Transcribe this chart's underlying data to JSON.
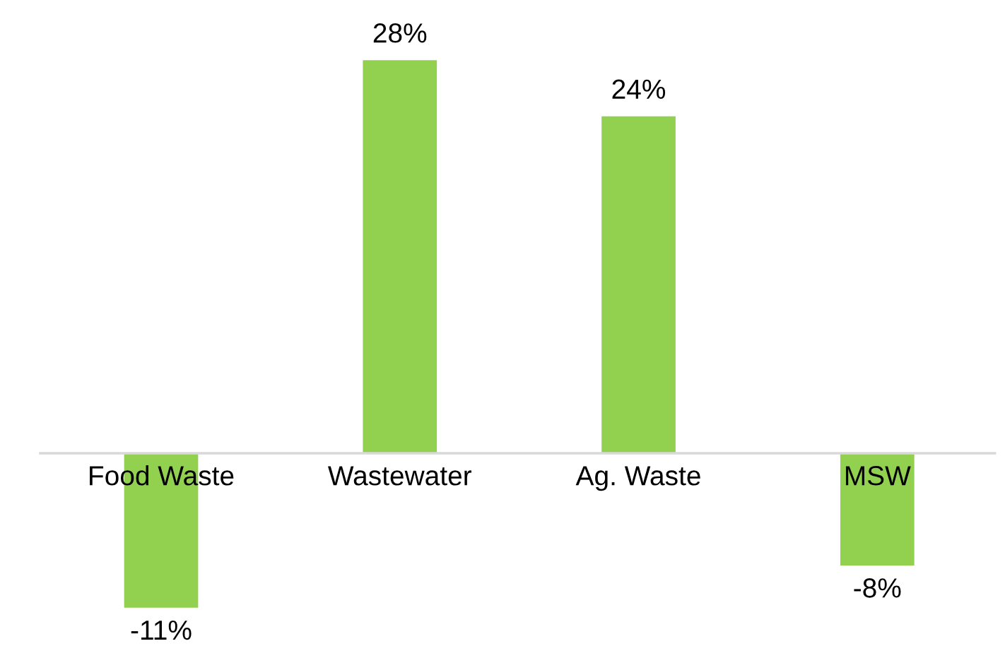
{
  "chart_data": {
    "type": "bar",
    "categories": [
      "Food Waste",
      "Wastewater",
      "Ag. Waste",
      "MSW"
    ],
    "values": [
      -11,
      28,
      24,
      -8
    ],
    "value_labels": [
      "-11%",
      "28%",
      "24%",
      "-8%"
    ],
    "color": "#92d050"
  }
}
